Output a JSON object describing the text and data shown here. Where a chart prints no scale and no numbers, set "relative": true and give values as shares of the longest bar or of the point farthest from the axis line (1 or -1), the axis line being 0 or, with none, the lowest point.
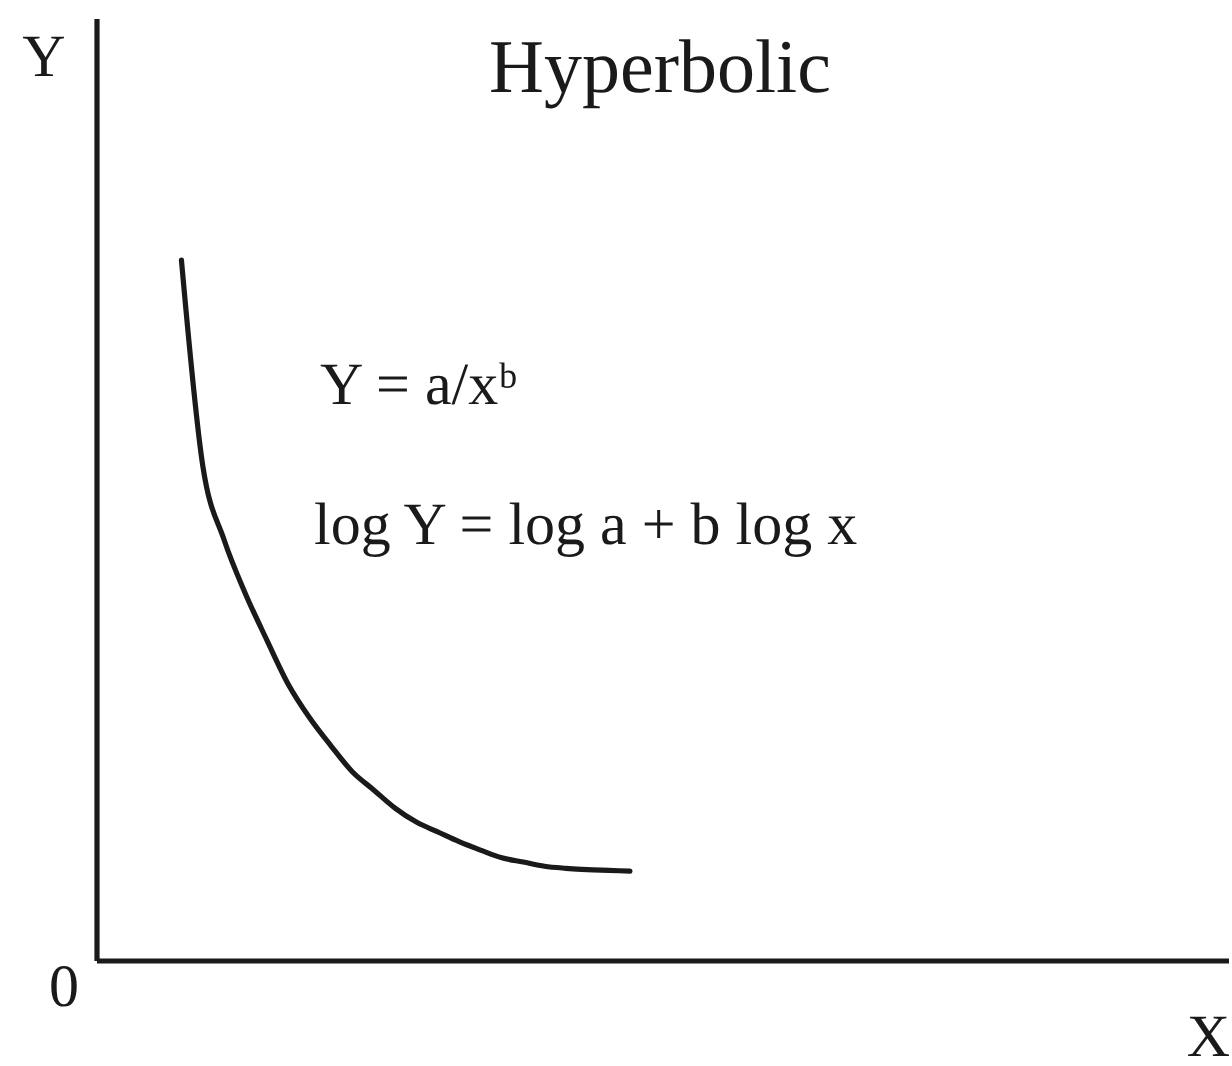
{
  "chart_data": {
    "type": "line",
    "title": "Hyperbolic",
    "xlabel": "X",
    "ylabel": "Y",
    "annotations": [
      "Y = a/xᵇ",
      "log Y = log a + b log x",
      "0"
    ],
    "relative": true,
    "color": "#1a1a1a",
    "categories": [
      null,
      null,
      null,
      null,
      null,
      null,
      null,
      null,
      null,
      null,
      null,
      null,
      null,
      null,
      null,
      null,
      null,
      null,
      null,
      null,
      null,
      null,
      null,
      null,
      null,
      null,
      null,
      null,
      null,
      null,
      null,
      null,
      null,
      null,
      null,
      null,
      null,
      null,
      null,
      null,
      null,
      null,
      null,
      null,
      null,
      null,
      null,
      null,
      null,
      null,
      null,
      null,
      null,
      null
    ],
    "values": [
      null,
      null,
      null,
      null,
      1.0,
      0.706,
      0.6,
      0.523,
      0.457,
      0.394,
      0.346,
      0.306,
      0.269,
      0.243,
      0.217,
      0.197,
      0.183,
      0.169,
      0.157,
      0.146,
      0.14,
      0.134,
      0.131,
      0.129,
      0.128,
      0.127,
      null,
      null,
      null,
      null,
      null,
      null,
      null,
      null,
      null,
      null,
      null,
      null,
      null,
      null,
      null,
      null,
      null,
      null,
      null,
      null,
      null,
      null,
      null,
      null,
      null,
      null,
      null,
      null
    ]
  }
}
